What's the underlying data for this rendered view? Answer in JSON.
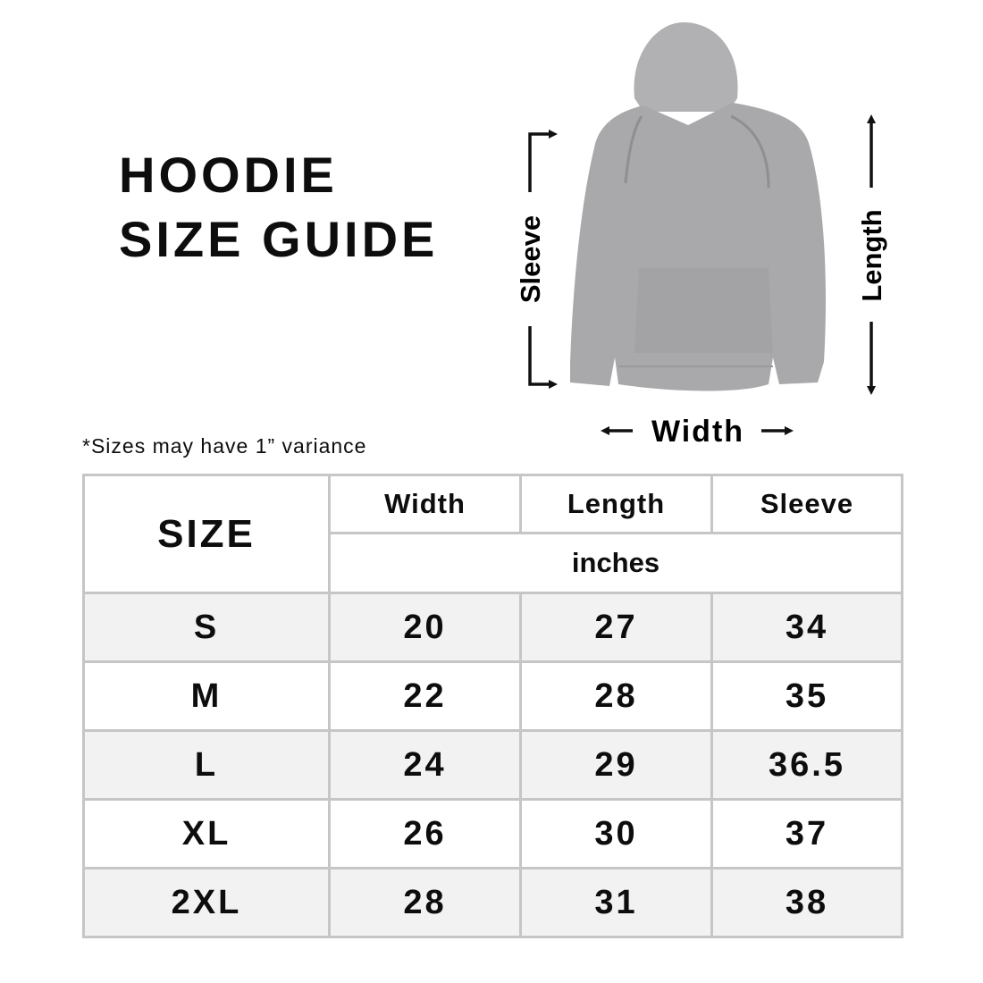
{
  "title_lines": [
    "HOODIE",
    "SIZE GUIDE"
  ],
  "note": "*Sizes may have 1” variance",
  "figure": {
    "labels": {
      "sleeve": "Sleeve",
      "length": "Length",
      "width": "Width"
    },
    "garment_color": "#a9a9ab"
  },
  "table": {
    "size_header": "SIZE",
    "columns": [
      "Width",
      "Length",
      "Sleeve"
    ],
    "unit": "inches",
    "rows": [
      {
        "size": "S",
        "width": "20",
        "length": "27",
        "sleeve": "34"
      },
      {
        "size": "M",
        "width": "22",
        "length": "28",
        "sleeve": "35"
      },
      {
        "size": "L",
        "width": "24",
        "length": "29",
        "sleeve": "36.5"
      },
      {
        "size": "XL",
        "width": "26",
        "length": "30",
        "sleeve": "37"
      },
      {
        "size": "2XL",
        "width": "28",
        "length": "31",
        "sleeve": "38"
      }
    ]
  }
}
